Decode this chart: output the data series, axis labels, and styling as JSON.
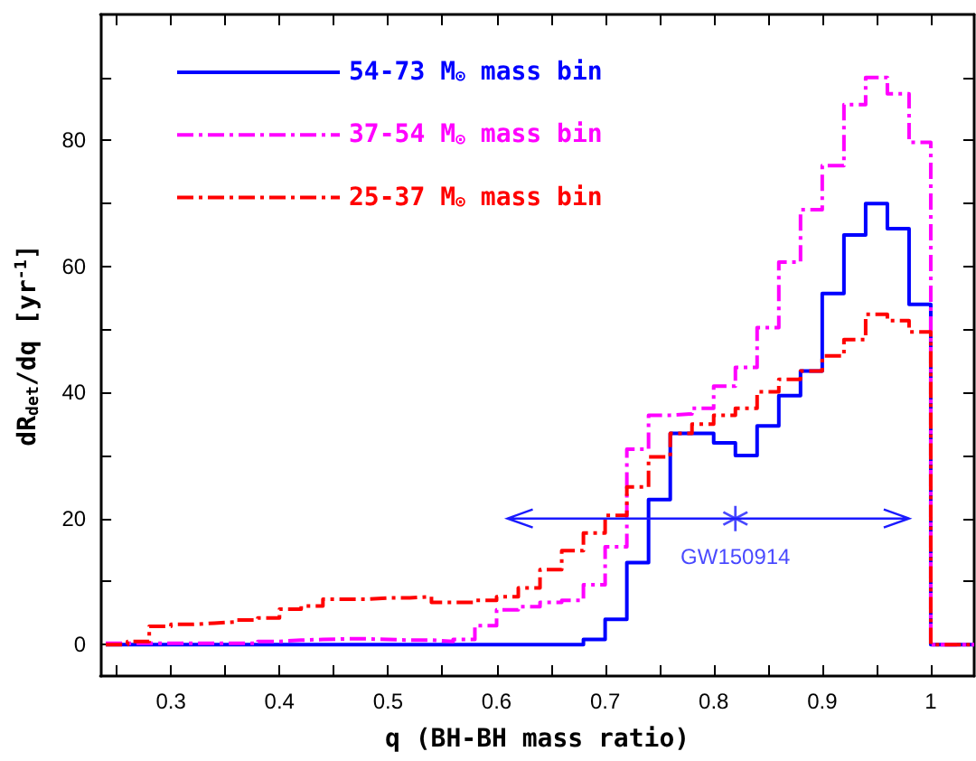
{
  "chart_data": {
    "type": "histogram",
    "xlabel": "q (BH-BH mass ratio)",
    "ylabel": "dR$_{det}$/dq [yr$^{-1}$]",
    "bins": [
      0.24,
      0.26,
      0.28,
      0.3,
      0.32,
      0.34,
      0.36,
      0.38,
      0.4,
      0.42,
      0.44,
      0.46,
      0.48,
      0.5,
      0.52,
      0.54,
      0.56,
      0.58,
      0.6,
      0.62,
      0.64,
      0.66,
      0.68,
      0.7,
      0.72,
      0.74,
      0.76,
      0.78,
      0.8,
      0.82,
      0.84,
      0.86,
      0.88,
      0.9,
      0.92,
      0.94,
      0.96,
      0.98,
      1.0,
      1.02,
      1.04
    ],
    "series": [
      {
        "name": "54-73 M$_{⊙}$ mass bin",
        "color": "#0000ff",
        "line_style": "solid",
        "values": [
          0,
          0,
          0,
          0,
          0,
          0,
          0,
          0,
          0,
          0,
          0,
          0,
          0,
          0,
          0,
          0,
          0,
          0,
          0,
          0,
          0,
          0,
          0.8,
          4,
          13,
          23,
          33.5,
          33.5,
          32,
          30,
          34.7,
          39.5,
          43.4,
          55.7,
          65,
          70,
          66,
          54,
          0,
          0
        ]
      },
      {
        "name": "37-54 M$_{⊙}$ mass bin",
        "color": "#ff00ff",
        "line_style": "dashed",
        "values": [
          0.2,
          0.2,
          0.2,
          0.2,
          0.2,
          0.2,
          0.2,
          0.5,
          0.7,
          0.8,
          0.9,
          0.9,
          0.8,
          0.7,
          0.7,
          0.5,
          0.8,
          3,
          5.5,
          6,
          6.7,
          7,
          9.5,
          15.5,
          31,
          36.4,
          36.6,
          37.5,
          41,
          44,
          50.3,
          60.7,
          69,
          76,
          85.7,
          90,
          87.4,
          79.7,
          0,
          0
        ]
      },
      {
        "name": "25-37 M$_{⊙}$ mass bin",
        "color": "#ff0000",
        "line_style": "dashed",
        "values": [
          0,
          0.5,
          2.9,
          3.2,
          3.4,
          3.6,
          3.9,
          4.2,
          5.6,
          6.1,
          7.2,
          7.2,
          7.4,
          7.4,
          7.6,
          6.7,
          6.7,
          7,
          7.6,
          9,
          11.9,
          14.9,
          17.7,
          20.5,
          25,
          29.8,
          33.5,
          35,
          36.4,
          37.5,
          40.1,
          42.1,
          43.4,
          45.8,
          48.4,
          52.4,
          51.4,
          49.6,
          0,
          0
        ]
      },
      {
        "name": "GW150914",
        "type": "scatter",
        "color": "#1a1aff",
        "marker": "cross",
        "x": [
          0.82
        ],
        "values": [
          20
        ],
        "xerrors": [
          [
            0.61,
            0.98
          ]
        ]
      }
    ],
    "xlim": [
      0.235,
      1.04
    ],
    "ylim": [
      -5,
      100
    ],
    "xticks": [
      {
        "value": 0.25,
        "label": null
      },
      0.3,
      {
        "value": 0.35,
        "label": null
      },
      0.4,
      {
        "value": 0.45,
        "label": null
      },
      0.5,
      {
        "value": 0.55,
        "label": null
      },
      0.6,
      {
        "value": 0.65,
        "label": null
      },
      0.7,
      {
        "value": 0.75,
        "label": null
      },
      0.8,
      {
        "value": 0.85,
        "label": null
      },
      0.9,
      {
        "value": 0.95,
        "label": null
      },
      1
    ],
    "yticks": [
      0,
      {
        "value": 10,
        "label": null
      },
      20,
      {
        "value": 30,
        "label": null
      },
      40,
      {
        "value": 50,
        "label": null
      },
      60,
      {
        "value": 70,
        "label": null
      },
      80,
      {
        "value": 90,
        "label": null
      }
    ],
    "legend": "top left",
    "grid": false
  }
}
